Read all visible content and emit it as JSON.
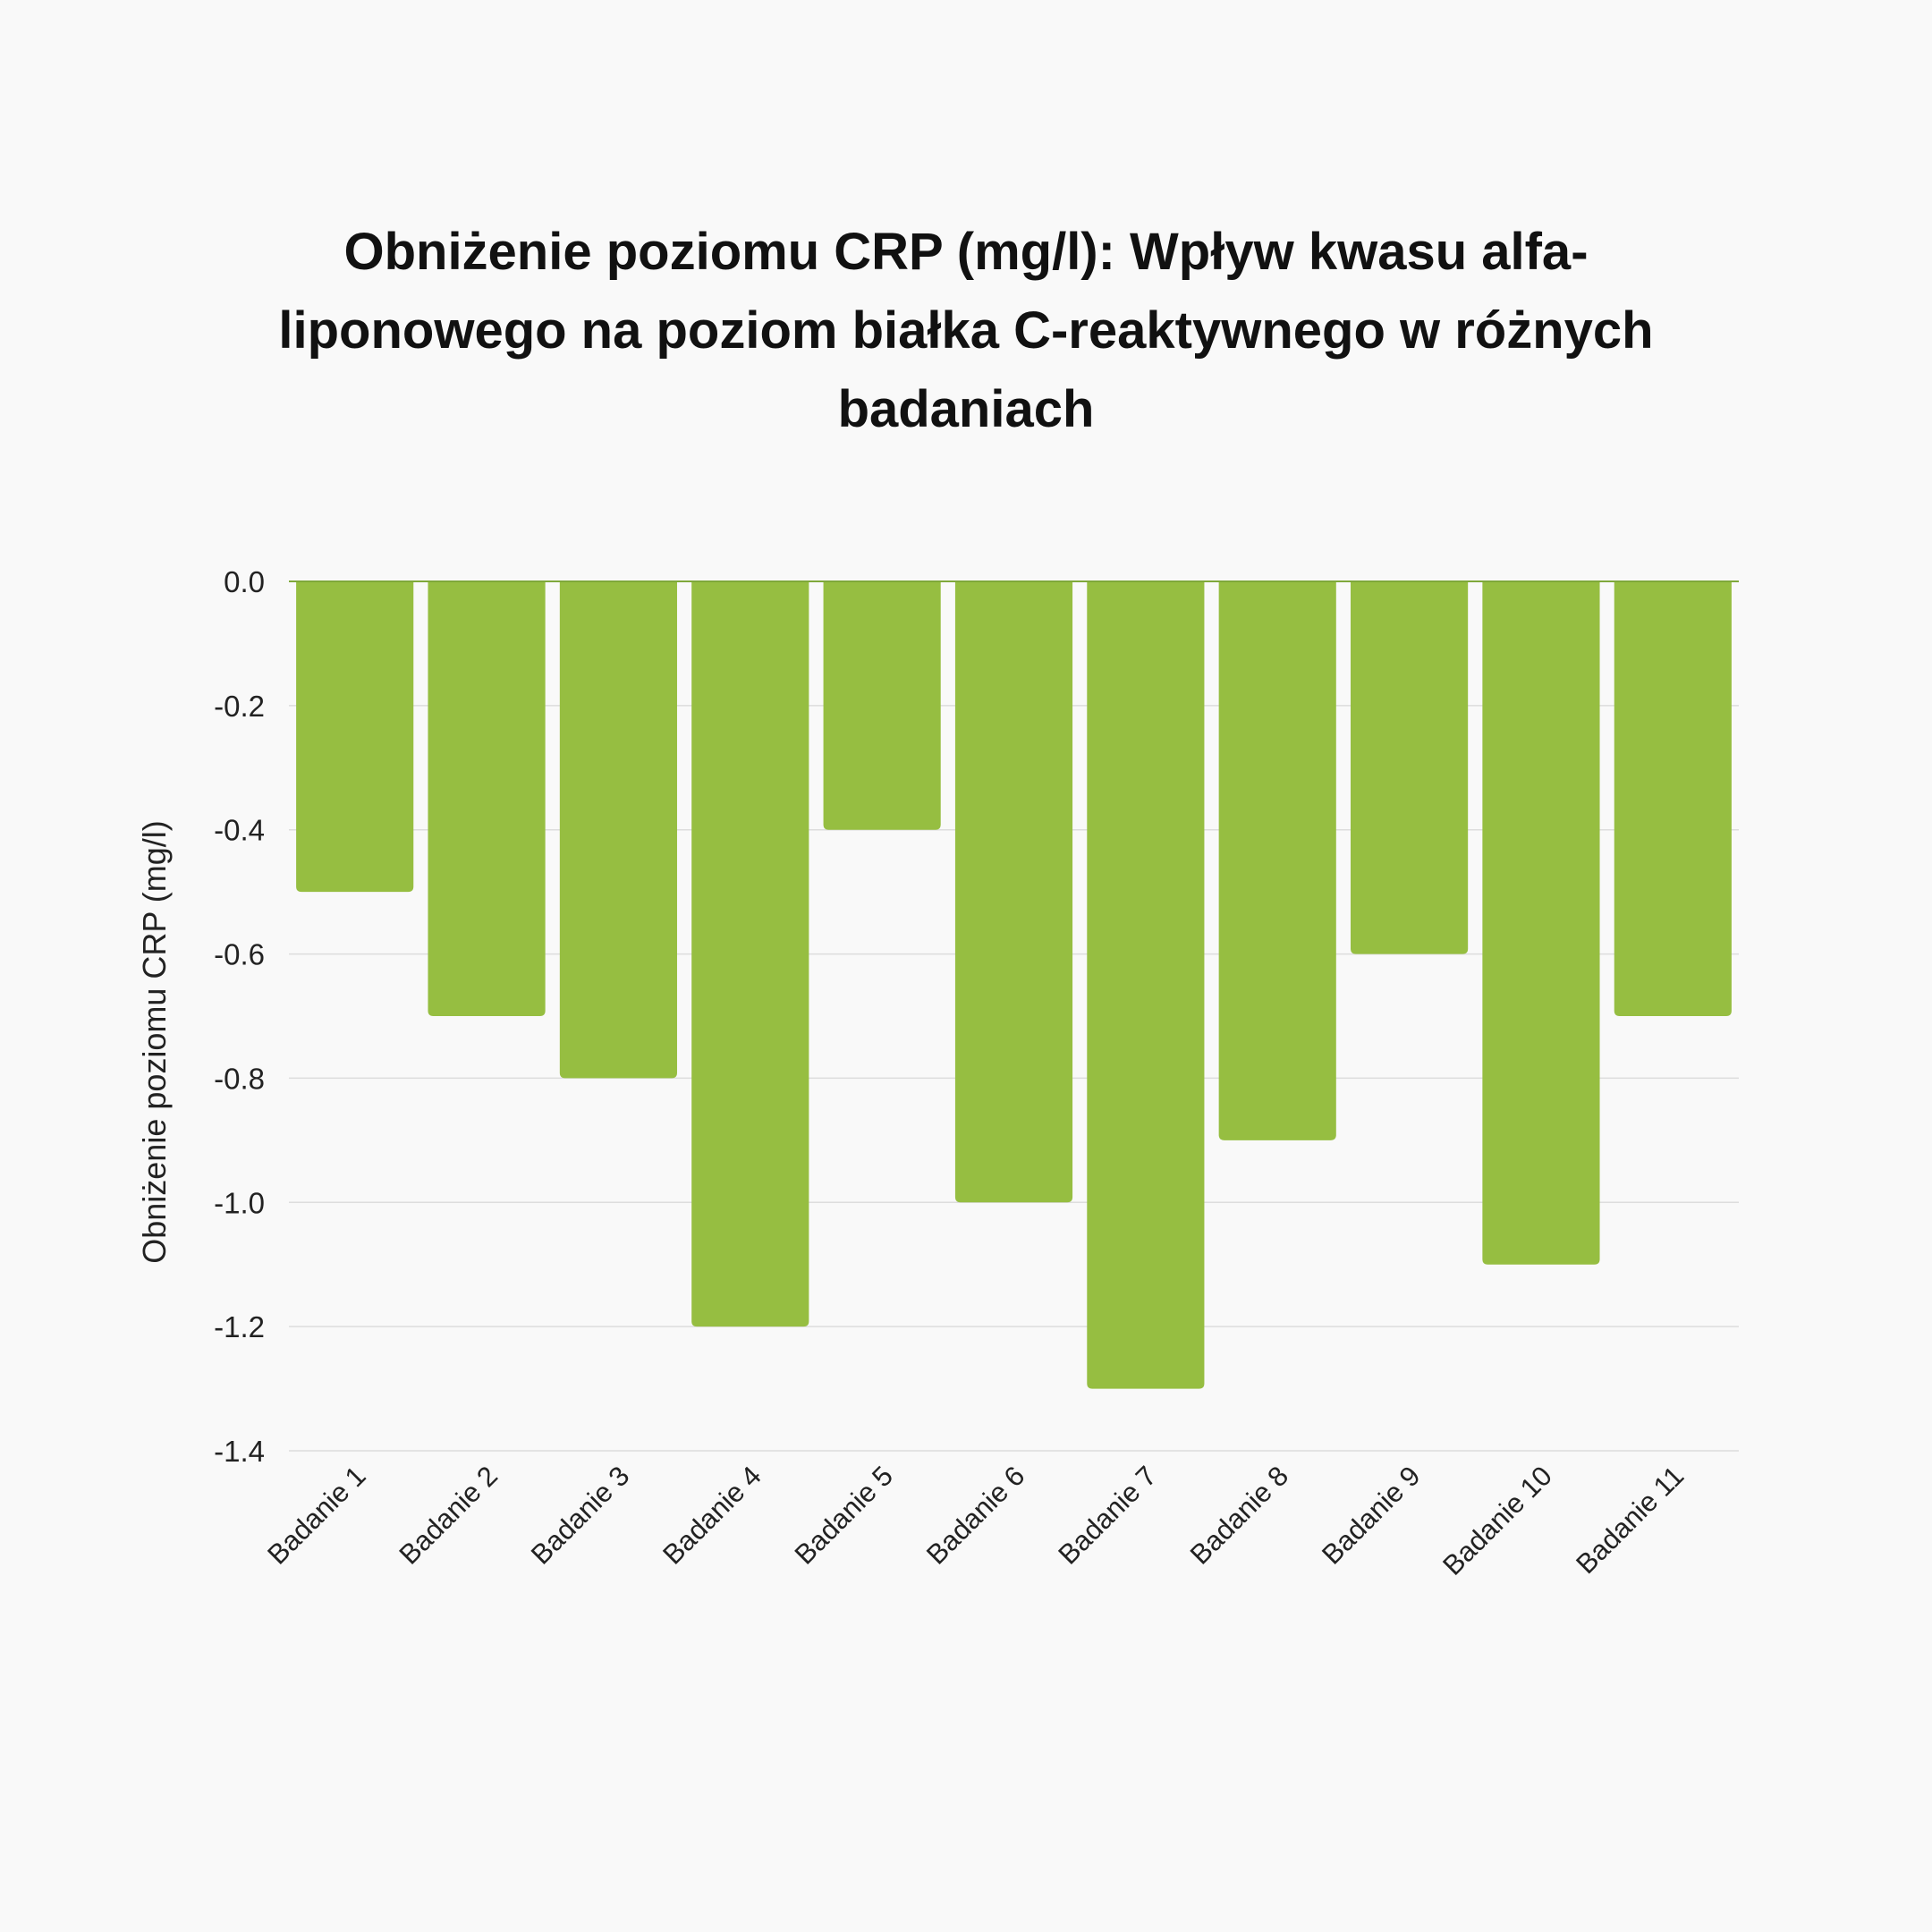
{
  "chart_data": {
    "type": "bar",
    "title": "Obniżenie poziomu CRP (mg/l): Wpływ kwasu alfa-liponowego na poziom białka C-reaktywnego w różnych badaniach",
    "xlabel": "",
    "ylabel": "Obniżenie poziomu CRP (mg/l)",
    "categories": [
      "Badanie 1",
      "Badanie 2",
      "Badanie 3",
      "Badanie 4",
      "Badanie 5",
      "Badanie 6",
      "Badanie 7",
      "Badanie 8",
      "Badanie 9",
      "Badanie 10",
      "Badanie 11"
    ],
    "values": [
      -0.5,
      -0.7,
      -0.8,
      -1.2,
      -0.4,
      -1.0,
      -1.3,
      -0.9,
      -0.6,
      -1.1,
      -0.7
    ],
    "ylim": [
      -1.4,
      0.0
    ],
    "yticks": [
      "0.0",
      "-0.2",
      "-0.4",
      "-0.6",
      "-0.8",
      "-1.0",
      "-1.2",
      "-1.4"
    ],
    "grid": true,
    "bar_color": "#96be41",
    "background": "#f9f9f9"
  }
}
